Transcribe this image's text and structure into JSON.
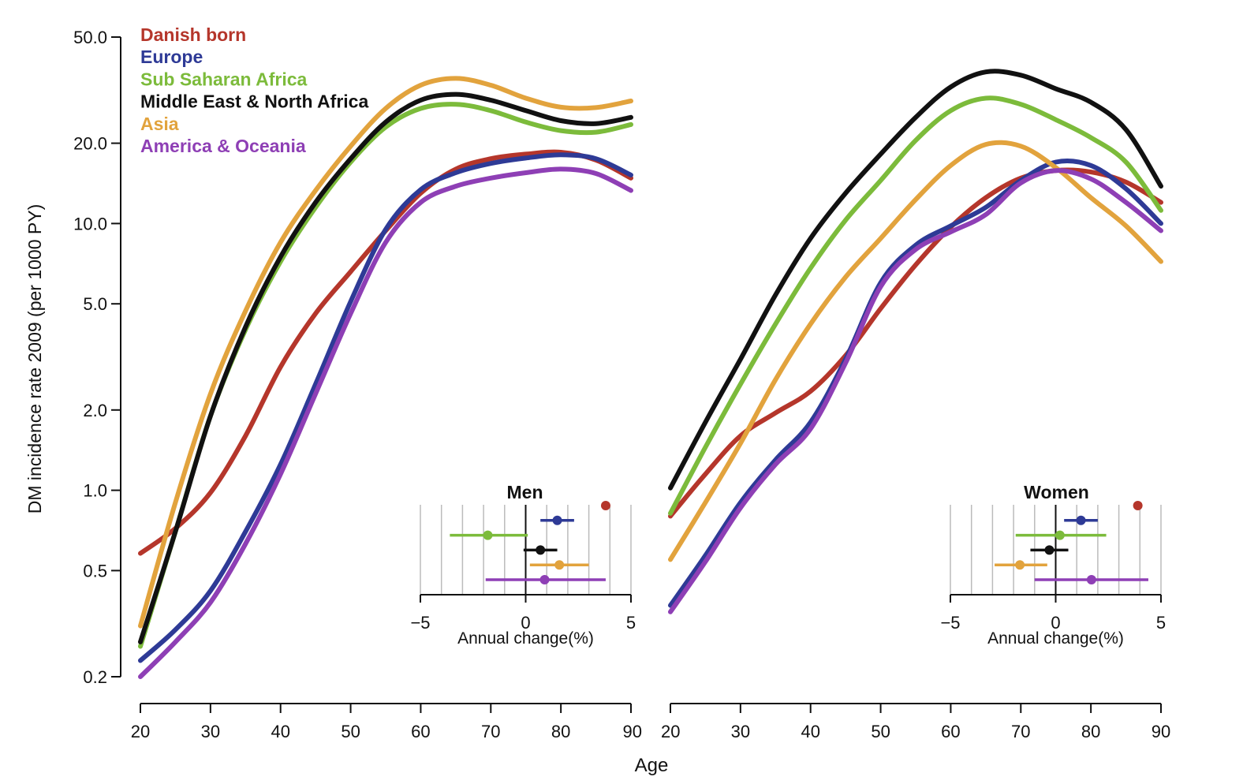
{
  "figure": {
    "ylabel": "DM incidence rate 2009 (per 1000 PY)",
    "xlabel": "Age",
    "inset_xlabel": "Annual change(%)"
  },
  "chart_data": {
    "type": "line",
    "y_scale": "log",
    "ylim": [
      0.2,
      50
    ],
    "y_ticks": [
      "0.2",
      "0.5",
      "1.0",
      "2.0",
      "5.0",
      "10.0",
      "20.0",
      "50.0"
    ],
    "xlim": [
      20,
      90
    ],
    "x_ticks": [
      "20",
      "30",
      "40",
      "50",
      "60",
      "70",
      "80",
      "90"
    ],
    "legend": [
      {
        "name": "Danish born",
        "color": "#b5362b"
      },
      {
        "name": "Europe",
        "color": "#2e3a96"
      },
      {
        "name": "Sub Saharan Africa",
        "color": "#7cbb3b"
      },
      {
        "name": "Middle East & North Africa",
        "color": "#111111"
      },
      {
        "name": "Asia",
        "color": "#e2a33d"
      },
      {
        "name": "America & Oceania",
        "color": "#8e3fb5"
      }
    ],
    "panels": [
      {
        "title": "Men",
        "series": [
          {
            "name": "Danish born",
            "color": "#b5362b",
            "x": [
              20,
              25,
              30,
              35,
              40,
              45,
              50,
              55,
              60,
              65,
              70,
              75,
              80,
              85,
              90
            ],
            "y": [
              0.58,
              0.72,
              0.98,
              1.6,
              2.9,
              4.6,
              6.6,
              9.4,
              13,
              16,
              17.5,
              18.2,
              18.5,
              17.3,
              14.8
            ]
          },
          {
            "name": "Europe",
            "color": "#2e3a96",
            "x": [
              20,
              25,
              30,
              35,
              40,
              45,
              50,
              55,
              60,
              65,
              70,
              75,
              80,
              85,
              90
            ],
            "y": [
              0.23,
              0.3,
              0.42,
              0.7,
              1.25,
              2.5,
              5.1,
              9.5,
              13.4,
              15.5,
              16.8,
              17.6,
              18.1,
              17.5,
              15.2
            ]
          },
          {
            "name": "Sub Saharan Africa",
            "color": "#7cbb3b",
            "x": [
              20,
              25,
              30,
              35,
              40,
              45,
              50,
              55,
              60,
              65,
              70,
              75,
              80,
              85,
              90
            ],
            "y": [
              0.26,
              0.7,
              1.9,
              4,
              7.2,
              11.5,
              17,
              23,
              27,
              28,
              26.5,
              24,
              22.3,
              22,
              23.5
            ]
          },
          {
            "name": "Middle East & North Africa",
            "color": "#111111",
            "x": [
              20,
              25,
              30,
              35,
              40,
              45,
              50,
              55,
              60,
              65,
              70,
              75,
              80,
              85,
              90
            ],
            "y": [
              0.27,
              0.7,
              1.9,
              4.1,
              7.5,
              12,
              17.5,
              24,
              29,
              30.5,
              29,
              26.5,
              24.3,
              23.7,
              25
            ]
          },
          {
            "name": "Asia",
            "color": "#e2a33d",
            "x": [
              20,
              25,
              30,
              35,
              40,
              45,
              50,
              55,
              60,
              65,
              70,
              75,
              80,
              85,
              90
            ],
            "y": [
              0.31,
              0.9,
              2.3,
              4.7,
              8.5,
              13.3,
              19.5,
              27,
              33,
              35,
              33,
              29.5,
              27.3,
              27.2,
              28.8
            ]
          },
          {
            "name": "America & Oceania",
            "color": "#8e3fb5",
            "x": [
              20,
              25,
              30,
              35,
              40,
              45,
              50,
              55,
              60,
              65,
              70,
              75,
              80,
              85,
              90
            ],
            "y": [
              0.2,
              0.27,
              0.38,
              0.63,
              1.15,
              2.3,
              4.6,
              8.5,
              12,
              13.8,
              14.8,
              15.5,
              16,
              15.4,
              13.3
            ]
          }
        ],
        "inset": {
          "title": "Men",
          "xlim": [
            -5,
            5
          ],
          "x_ticks": [
            "−5",
            "0",
            "5"
          ],
          "rows": [
            {
              "name": "Danish born",
              "color": "#b5362b",
              "est": 3.8,
              "lo": null,
              "hi": null
            },
            {
              "name": "Europe",
              "color": "#2e3a96",
              "est": 1.5,
              "lo": 0.7,
              "hi": 2.3
            },
            {
              "name": "Sub Saharan Africa",
              "color": "#7cbb3b",
              "est": -1.8,
              "lo": -3.6,
              "hi": 0.1
            },
            {
              "name": "Middle East & North Africa",
              "color": "#111111",
              "est": 0.7,
              "lo": -0.1,
              "hi": 1.5
            },
            {
              "name": "Asia",
              "color": "#e2a33d",
              "est": 1.6,
              "lo": 0.2,
              "hi": 3.0
            },
            {
              "name": "America & Oceania",
              "color": "#8e3fb5",
              "est": 0.9,
              "lo": -1.9,
              "hi": 3.8
            }
          ]
        }
      },
      {
        "title": "Women",
        "series": [
          {
            "name": "Danish born",
            "color": "#b5362b",
            "x": [
              20,
              25,
              30,
              35,
              40,
              45,
              50,
              55,
              60,
              65,
              70,
              75,
              80,
              85,
              90
            ],
            "y": [
              0.8,
              1.15,
              1.6,
              1.95,
              2.35,
              3.2,
              4.8,
              7,
              9.7,
              12.5,
              14.8,
              15.8,
              15.6,
              14.3,
              12
            ]
          },
          {
            "name": "Europe",
            "color": "#2e3a96",
            "x": [
              20,
              25,
              30,
              35,
              40,
              45,
              50,
              55,
              60,
              65,
              70,
              75,
              80,
              85,
              90
            ],
            "y": [
              0.37,
              0.57,
              0.9,
              1.3,
              1.8,
              3.1,
              6,
              8.3,
              9.8,
              11.5,
              14.5,
              17,
              16.5,
              13.5,
              10
            ]
          },
          {
            "name": "Sub Saharan Africa",
            "color": "#7cbb3b",
            "x": [
              20,
              25,
              30,
              35,
              40,
              45,
              50,
              55,
              60,
              65,
              70,
              75,
              80,
              85,
              90
            ],
            "y": [
              0.82,
              1.45,
              2.5,
              4.2,
              6.8,
              10.3,
              14.5,
              20.5,
              26.5,
              29.5,
              28,
              24.5,
              21,
              17,
              11.2
            ]
          },
          {
            "name": "Middle East & North Africa",
            "color": "#111111",
            "x": [
              20,
              25,
              30,
              35,
              40,
              45,
              50,
              55,
              60,
              65,
              70,
              75,
              80,
              85,
              90
            ],
            "y": [
              1.02,
              1.8,
              3.1,
              5.4,
              8.8,
              13,
              18.2,
              25,
              32.5,
              37,
              36,
              32,
              28.5,
              22.5,
              13.8
            ]
          },
          {
            "name": "Asia",
            "color": "#e2a33d",
            "x": [
              20,
              25,
              30,
              35,
              40,
              45,
              50,
              55,
              60,
              65,
              70,
              75,
              80,
              85,
              90
            ],
            "y": [
              0.55,
              0.9,
              1.5,
              2.6,
              4.2,
              6.3,
              8.8,
              12.3,
              16.5,
              19.8,
              19.5,
              16.2,
              12.5,
              9.8,
              7.2
            ]
          },
          {
            "name": "America & Oceania",
            "color": "#8e3fb5",
            "x": [
              20,
              25,
              30,
              35,
              40,
              45,
              50,
              55,
              60,
              65,
              70,
              75,
              80,
              85,
              90
            ],
            "y": [
              0.35,
              0.54,
              0.86,
              1.25,
              1.7,
              3,
              5.8,
              8,
              9.3,
              10.8,
              14.2,
              15.8,
              14.7,
              12,
              9.4
            ]
          }
        ],
        "inset": {
          "title": "Women",
          "xlim": [
            -5,
            5
          ],
          "x_ticks": [
            "−5",
            "0",
            "5"
          ],
          "rows": [
            {
              "name": "Danish born",
              "color": "#b5362b",
              "est": 3.9,
              "lo": null,
              "hi": null
            },
            {
              "name": "Europe",
              "color": "#2e3a96",
              "est": 1.2,
              "lo": 0.4,
              "hi": 2.0
            },
            {
              "name": "Sub Saharan Africa",
              "color": "#7cbb3b",
              "est": 0.2,
              "lo": -1.9,
              "hi": 2.4
            },
            {
              "name": "Middle East & North Africa",
              "color": "#111111",
              "est": -0.3,
              "lo": -1.2,
              "hi": 0.6
            },
            {
              "name": "Asia",
              "color": "#e2a33d",
              "est": -1.7,
              "lo": -2.9,
              "hi": -0.4
            },
            {
              "name": "America & Oceania",
              "color": "#8e3fb5",
              "est": 1.7,
              "lo": -1.0,
              "hi": 4.4
            }
          ]
        }
      }
    ]
  }
}
